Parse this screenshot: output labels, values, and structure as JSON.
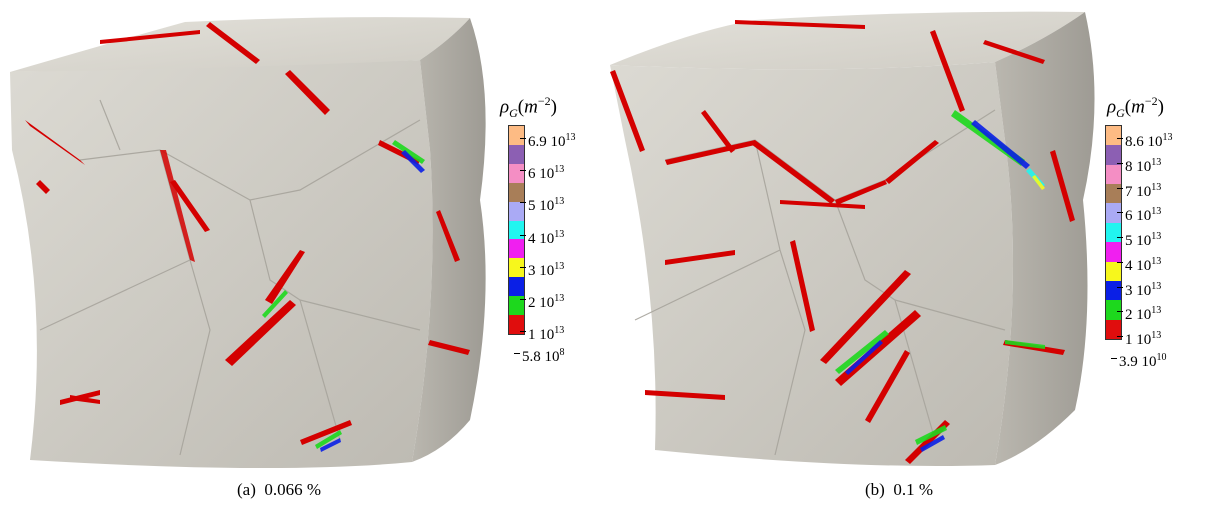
{
  "panels": [
    {
      "id": "a",
      "caption_label": "(a)",
      "caption_value": "0.066 %",
      "colorbar": {
        "title_symbol": "ρ",
        "title_sub": "G",
        "title_open": "(",
        "title_unit": "m",
        "title_exp": "−2",
        "title_close": ")",
        "labels": [
          {
            "mantissa": "6.9 10",
            "exp": "13"
          },
          {
            "mantissa": "6 10",
            "exp": "13"
          },
          {
            "mantissa": "5 10",
            "exp": "13"
          },
          {
            "mantissa": "4 10",
            "exp": "13"
          },
          {
            "mantissa": "3 10",
            "exp": "13"
          },
          {
            "mantissa": "2 10",
            "exp": "13"
          },
          {
            "mantissa": "1 10",
            "exp": "13"
          },
          {
            "mantissa": "5.8 10",
            "exp": "8"
          }
        ],
        "colors": [
          "#fdbb84",
          "#8c5fb3",
          "#f48ec4",
          "#a87e58",
          "#aaaaf5",
          "#21f5f0",
          "#f01ff0",
          "#f7f71c",
          "#0a1fe6",
          "#1dd81d",
          "#e00d0d"
        ]
      }
    },
    {
      "id": "b",
      "caption_label": "(b)",
      "caption_value": "0.1 %",
      "colorbar": {
        "title_symbol": "ρ",
        "title_sub": "G",
        "title_open": "(",
        "title_unit": "m",
        "title_exp": "−2",
        "title_close": ")",
        "labels": [
          {
            "mantissa": "8.6 10",
            "exp": "13"
          },
          {
            "mantissa": "8 10",
            "exp": "13"
          },
          {
            "mantissa": "7 10",
            "exp": "13"
          },
          {
            "mantissa": "6 10",
            "exp": "13"
          },
          {
            "mantissa": "5 10",
            "exp": "13"
          },
          {
            "mantissa": "4 10",
            "exp": "13"
          },
          {
            "mantissa": "3 10",
            "exp": "13"
          },
          {
            "mantissa": "2 10",
            "exp": "13"
          },
          {
            "mantissa": "1 10",
            "exp": "13"
          },
          {
            "mantissa": "3.9 10",
            "exp": "10"
          }
        ],
        "colors": [
          "#fdbb84",
          "#8c5fb3",
          "#f48ec4",
          "#a87e58",
          "#aaaaf5",
          "#21f5f0",
          "#f01ff0",
          "#f7f71c",
          "#0a1fe6",
          "#1dd81d",
          "#e00d0d"
        ]
      }
    }
  ]
}
